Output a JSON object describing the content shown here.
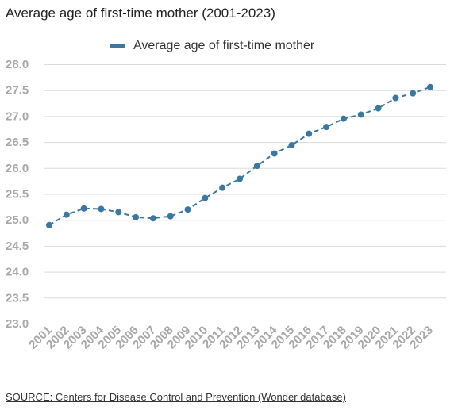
{
  "chart_data": {
    "type": "line",
    "title": "Average age of first-time mother (2001-2023)",
    "xlabel": "",
    "ylabel": "",
    "ylim": [
      23.0,
      28.0
    ],
    "yticks": [
      "23.0",
      "23.5",
      "24.0",
      "24.5",
      "25.0",
      "25.5",
      "26.0",
      "26.5",
      "27.0",
      "27.5",
      "28.0"
    ],
    "legend_position": "top",
    "grid": true,
    "x": [
      "2001",
      "2002",
      "2003",
      "2004",
      "2005",
      "2006",
      "2007",
      "2008",
      "2009",
      "2010",
      "2011",
      "2012",
      "2013",
      "2014",
      "2015",
      "2016",
      "2017",
      "2018",
      "2019",
      "2020",
      "2021",
      "2022",
      "2023"
    ],
    "series": [
      {
        "name": "Average age of first-time mother",
        "color": "#3a78a2",
        "values": [
          24.9,
          25.1,
          25.22,
          25.21,
          25.15,
          25.05,
          25.03,
          25.07,
          25.2,
          25.42,
          25.62,
          25.79,
          26.04,
          26.28,
          26.44,
          26.66,
          26.79,
          26.95,
          27.03,
          27.15,
          27.35,
          27.44,
          27.56
        ]
      }
    ],
    "source": "SOURCE: Centers for Disease Control and Prevention (Wonder database)"
  }
}
